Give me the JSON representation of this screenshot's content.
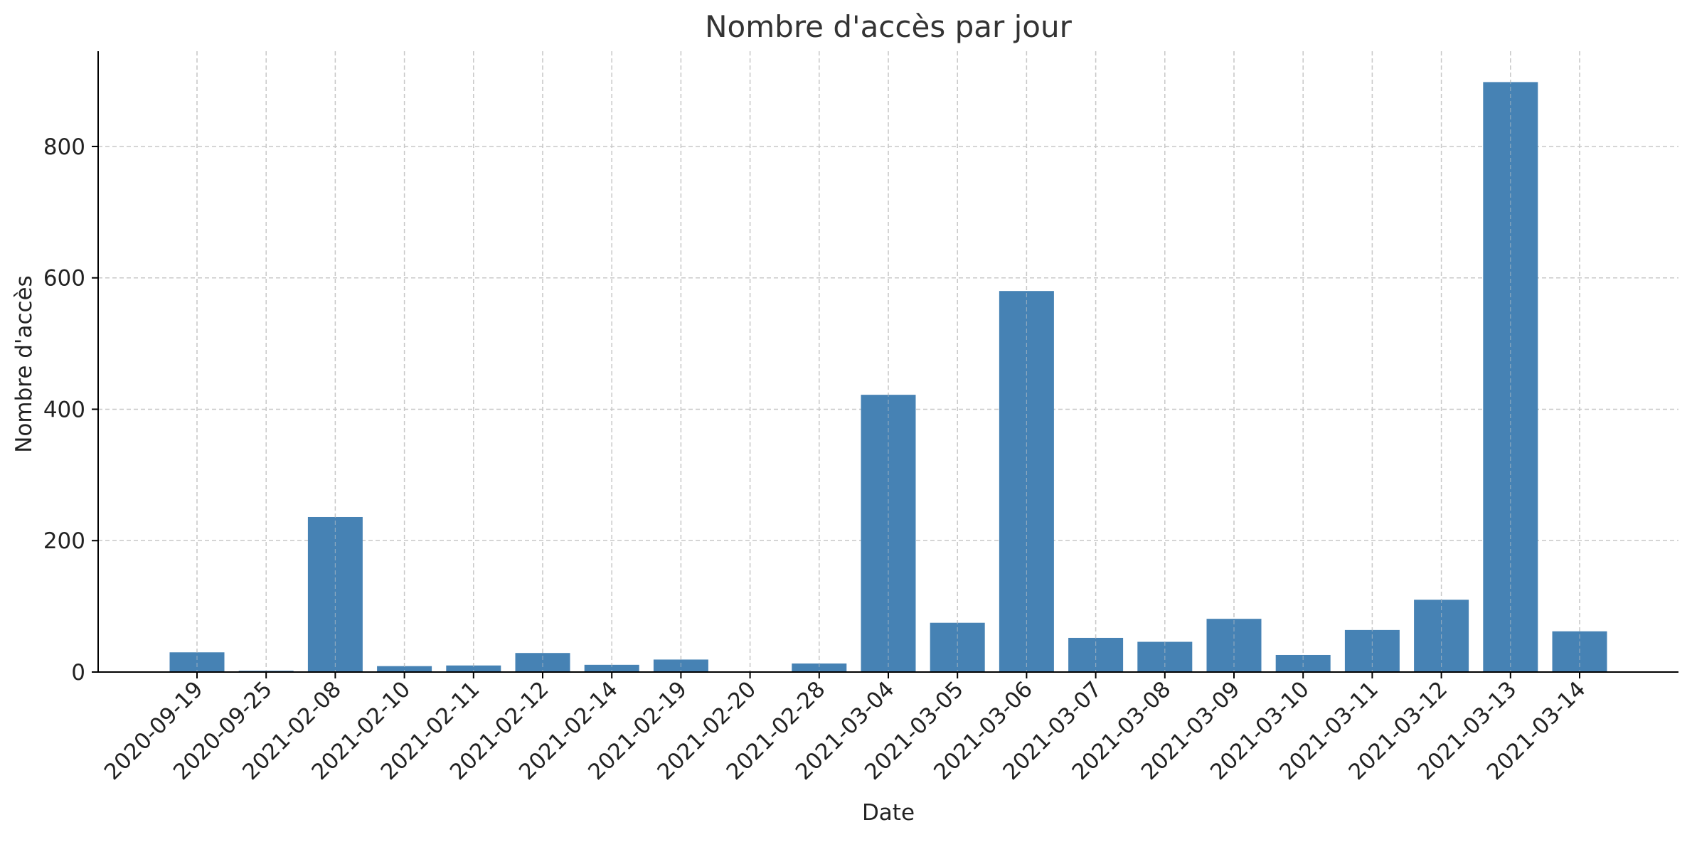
{
  "chart_data": {
    "type": "bar",
    "title": "Nombre d'accès par jour",
    "xlabel": "Date",
    "ylabel": "Nombre d'accès",
    "categories": [
      "2020-09-19",
      "2020-09-25",
      "2021-02-08",
      "2021-02-10",
      "2021-02-11",
      "2021-02-12",
      "2021-02-14",
      "2021-02-19",
      "2021-02-20",
      "2021-02-28",
      "2021-03-04",
      "2021-03-05",
      "2021-03-06",
      "2021-03-07",
      "2021-03-08",
      "2021-03-09",
      "2021-03-10",
      "2021-03-11",
      "2021-03-12",
      "2021-03-13",
      "2021-03-14"
    ],
    "values": [
      30,
      2,
      236,
      9,
      10,
      29,
      11,
      19,
      1,
      13,
      422,
      75,
      580,
      52,
      46,
      81,
      26,
      64,
      110,
      898,
      62
    ],
    "ylim": [
      0,
      945
    ],
    "yticks": [
      0,
      200,
      400,
      600,
      800
    ],
    "grid": true,
    "colors": {
      "bar": "#4682b4",
      "grid": "#c8c8c8",
      "axis": "#000000",
      "text": "#333333"
    }
  }
}
